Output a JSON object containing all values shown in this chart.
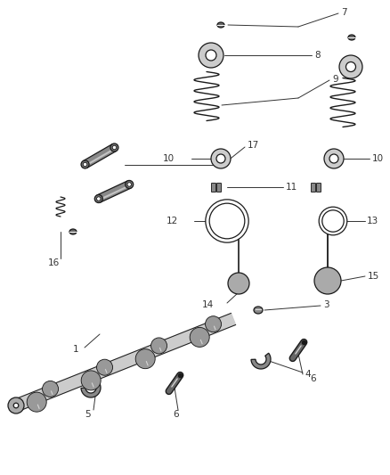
{
  "bg_color": "#ffffff",
  "lc": "#1a1a1a",
  "tc": "#333333",
  "fs": 7.5,
  "lw": 0.9,
  "figw": 4.38,
  "figh": 5.33,
  "dpi": 100
}
